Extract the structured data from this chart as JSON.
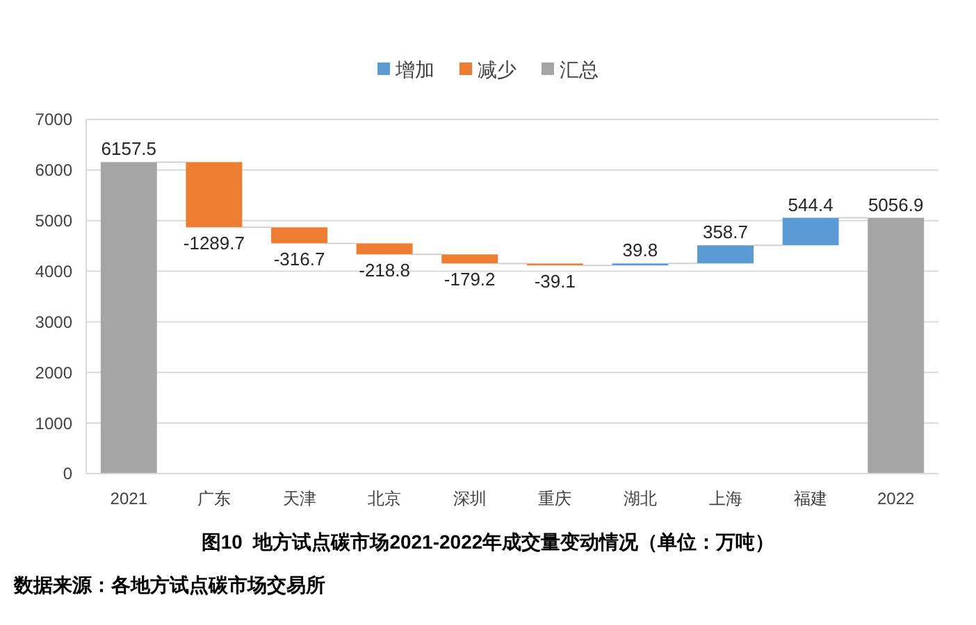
{
  "chart_data": {
    "type": "bar",
    "title": "图10  地方试点碳市场2021-2022年成交量变动情况（单位：万吨）",
    "annotations": [
      "数据来源：各地方试点碳市场交易所"
    ],
    "categories": [
      "2021",
      "广东",
      "天津",
      "北京",
      "深圳",
      "重庆",
      "湖北",
      "上海",
      "福建",
      "2022"
    ],
    "series": [
      {
        "name": "增加",
        "color": "#5b9bd5",
        "values": [
          null,
          null,
          null,
          null,
          null,
          null,
          39.8,
          358.7,
          544.4,
          null
        ],
        "base": [
          null,
          null,
          null,
          null,
          null,
          null,
          4114,
          4153.8,
          4512.5,
          null
        ]
      },
      {
        "name": "减少",
        "color": "#ed7d31",
        "values": [
          null,
          -1289.7,
          -316.7,
          -218.8,
          -179.2,
          -39.1,
          null,
          null,
          null,
          null
        ],
        "base": [
          null,
          6157.5,
          4867.8,
          4551.1,
          4332.3,
          4153.1,
          null,
          null,
          null,
          null
        ]
      },
      {
        "name": "汇总",
        "color": "#a5a5a5",
        "values": [
          6157.5,
          null,
          null,
          null,
          null,
          null,
          null,
          null,
          null,
          5056.9
        ]
      }
    ],
    "ylim": [
      0,
      7000
    ],
    "yticks": [
      0,
      1000,
      2000,
      3000,
      4000,
      5000,
      6000,
      7000
    ],
    "grid": "y",
    "legend": "top",
    "data_labels": true
  }
}
